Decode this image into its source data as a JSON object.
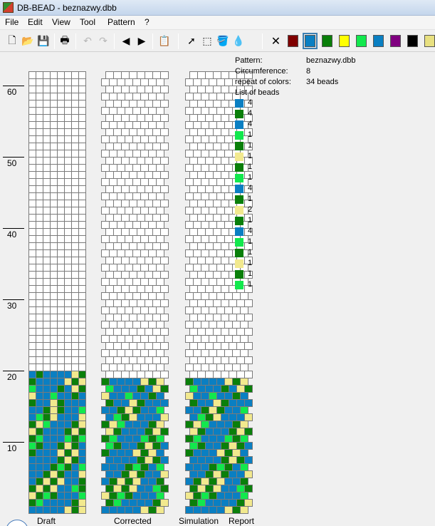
{
  "window": {
    "title": "DB-BEAD - beznazwy.dbb"
  },
  "menu": [
    "File",
    "Edit",
    "View",
    "Tool",
    "Pattern",
    "?"
  ],
  "toolbar": {
    "tools": [
      {
        "name": "new-file-icon",
        "glyph": "🗋",
        "enabled": true
      },
      {
        "name": "open-folder-icon",
        "glyph": "📂",
        "enabled": true
      },
      {
        "name": "save-icon",
        "glyph": "💾",
        "enabled": true
      },
      {
        "name": "print-icon",
        "glyph": "🖶",
        "enabled": true
      },
      {
        "name": "undo-icon",
        "glyph": "↶",
        "enabled": false
      },
      {
        "name": "redo-icon",
        "glyph": "↷",
        "enabled": false
      },
      {
        "name": "arrow-left-icon",
        "glyph": "◀",
        "enabled": true
      },
      {
        "name": "arrow-right-icon",
        "glyph": "▶",
        "enabled": true
      },
      {
        "name": "paste-icon",
        "glyph": "📋",
        "enabled": false
      },
      {
        "name": "pointer-icon",
        "glyph": "➚",
        "enabled": true
      },
      {
        "name": "select-rect-icon",
        "glyph": "⬚",
        "enabled": true
      },
      {
        "name": "fill-bucket-icon",
        "glyph": "🪣",
        "enabled": true
      },
      {
        "name": "eyedropper-icon",
        "glyph": "💧",
        "enabled": true
      }
    ],
    "palette": [
      "#ffffff",
      "#800000",
      "#0a7fc2",
      "#0a7f0a",
      "#ffff00",
      "#12e84d",
      "#0a7fc2",
      "#800080",
      "#000000",
      "#e8e080"
    ],
    "selected_color": 2
  },
  "ruler": {
    "labels": [
      "60",
      "50",
      "40",
      "30",
      "20",
      "10"
    ]
  },
  "views": {
    "draft": "Draft",
    "corrected": "Corrected",
    "simulation": "Simulation",
    "report": "Report"
  },
  "colors": {
    "blue": "#0a7fc2",
    "green": "#0a7f0a",
    "lime": "#12e84d",
    "yellow": "#f2e98e",
    "empty": "#ffffff"
  },
  "pattern": {
    "rows_filled": 20,
    "rows_total": 62,
    "width": 8,
    "rows": [
      "BGBBBBYG",
      "GBBBBYGY",
      "LBBBGBYG",
      "YBBLBBGB",
      "GBBYGBBB",
      "BBGYGBBL",
      "BLGYBBBY",
      "GYLBBBGY",
      "YGBBBGYG",
      "GLBBBLGL",
      "LGBBGYGB",
      "GBBBYGYB",
      "BBBBGYGB",
      "BBBGLGBL",
      "BBGYGBBY",
      "BGYGYBBG",
      "GYGYBBLG",
      "YGLGBBBL",
      "GLBBBBGY",
      "BBBBBYGY"
    ]
  },
  "info": {
    "pattern_label": "Pattern:",
    "pattern_value": "beznazwy.dbb",
    "circ_label": "Circumference:",
    "circ_value": "8",
    "repeat_label": "repeat of colors:",
    "repeat_value": "34 beads",
    "list_label": "List of beads"
  },
  "bead_list": [
    {
      "color": "#0a7fc2",
      "count": "4"
    },
    {
      "color": "#0a7f0a",
      "count": "4"
    },
    {
      "color": "#0a7fc2",
      "count": "4"
    },
    {
      "color": "#12e84d",
      "count": "1"
    },
    {
      "color": "#0a7f0a",
      "count": "1"
    },
    {
      "color": "#f2e98e",
      "count": "1"
    },
    {
      "color": "#0a7f0a",
      "count": "1"
    },
    {
      "color": "#12e84d",
      "count": "1"
    },
    {
      "color": "#0a7fc2",
      "count": "4"
    },
    {
      "color": "#0a7f0a",
      "count": "1"
    },
    {
      "color": "#f2e98e",
      "count": "2"
    },
    {
      "color": "#0a7f0a",
      "count": "1"
    },
    {
      "color": "#0a7fc2",
      "count": "4"
    },
    {
      "color": "#12e84d",
      "count": "1"
    },
    {
      "color": "#0a7f0a",
      "count": "1"
    },
    {
      "color": "#f2e98e",
      "count": "1"
    },
    {
      "color": "#0a7f0a",
      "count": "1"
    },
    {
      "color": "#12e84d",
      "count": "1"
    }
  ]
}
